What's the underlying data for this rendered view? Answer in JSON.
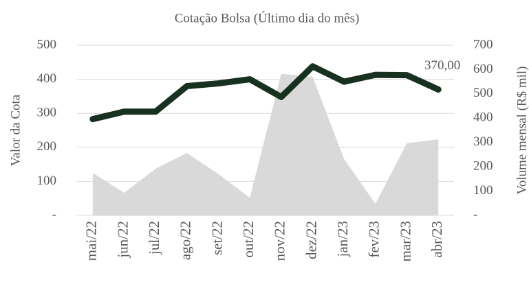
{
  "chart_data": {
    "type": "line",
    "title": "Cotação Bolsa (Último dia do mês)",
    "ylabel": "Valor da Cota",
    "y2label": "Volume mensal (R$ mil)",
    "categories": [
      "mai/22",
      "jun/22",
      "jul/22",
      "ago/22",
      "set/22",
      "out/22",
      "nov/22",
      "dez/22",
      "jan/23",
      "fev/23",
      "mar/23",
      "abr/23"
    ],
    "series": [
      {
        "name": "Volume mensal (R$ mil)",
        "type": "area",
        "axis": "y2",
        "color": "#d9d9d9",
        "values": [
          175,
          93,
          192,
          257,
          170,
          73,
          582,
          570,
          232,
          48,
          297,
          313
        ]
      },
      {
        "name": "Valor da Cota",
        "type": "line",
        "color": "#17301f",
        "values": [
          283,
          305,
          305,
          380,
          388,
          400,
          348,
          438,
          393,
          413,
          412,
          370
        ],
        "value_labels": [
          null,
          null,
          null,
          null,
          null,
          null,
          null,
          null,
          null,
          null,
          null,
          "370,00"
        ]
      }
    ],
    "ylim": [
      0,
      500
    ],
    "yticks": [
      {
        "value": 0,
        "label": "-"
      },
      100,
      200,
      300,
      400,
      500
    ],
    "y2lim": [
      0,
      700
    ],
    "y2ticks": [
      {
        "value": 0,
        "label": "-"
      },
      100,
      200,
      300,
      400,
      500,
      600,
      700
    ],
    "grid": true
  }
}
